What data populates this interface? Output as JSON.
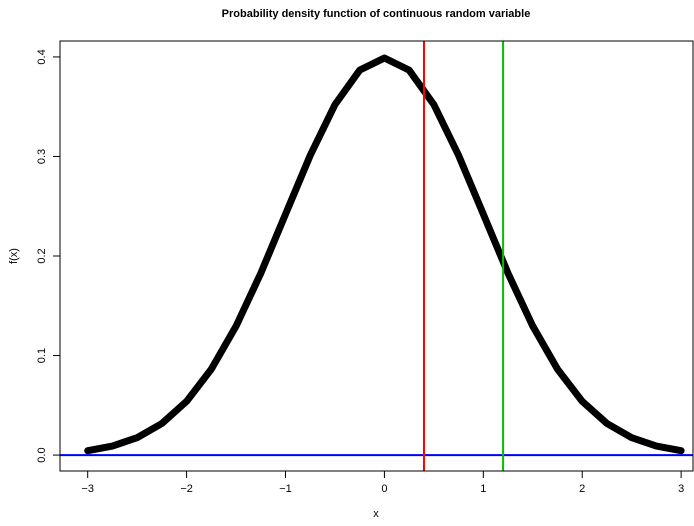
{
  "chart_data": {
    "type": "line",
    "title": "Probability density function of continuous random variable",
    "xlabel": "x",
    "ylabel": "f(x)",
    "series": [
      {
        "name": null,
        "color": "#000000",
        "x": [
          -3,
          -2.75,
          -2.5,
          -2.25,
          -2,
          -1.75,
          -1.5,
          -1.25,
          -1,
          -0.75,
          -0.5,
          -0.25,
          0,
          0.25,
          0.5,
          0.75,
          1,
          1.25,
          1.5,
          1.75,
          2,
          2.25,
          2.5,
          2.75,
          3
        ],
        "values": [
          0.0044,
          0.0091,
          0.0175,
          0.0317,
          0.054,
          0.0863,
          0.1295,
          0.1826,
          0.242,
          0.3011,
          0.3521,
          0.3867,
          0.3989,
          0.3867,
          0.3521,
          0.3011,
          0.242,
          0.1826,
          0.1295,
          0.0863,
          0.054,
          0.0317,
          0.0175,
          0.0091,
          0.0044
        ]
      }
    ],
    "vlines": [
      {
        "x": 0.4,
        "color": "#ff0000"
      },
      {
        "x": 1.2,
        "color": "#00c000"
      }
    ],
    "hlines": [
      {
        "y": 0,
        "color": "#0000ff"
      }
    ],
    "xlim": [
      -3.28,
      3.12
    ],
    "ylim": [
      -0.016,
      0.416
    ],
    "xticks": [
      {
        "value": -3,
        "label": "−3"
      },
      {
        "value": -2,
        "label": "−2"
      },
      {
        "value": -1,
        "label": "−1"
      },
      0,
      1,
      2,
      3
    ],
    "yticks": [
      {
        "value": 0,
        "label": "0.0"
      },
      0.1,
      0.2,
      0.3,
      0.4
    ],
    "grid": false
  }
}
